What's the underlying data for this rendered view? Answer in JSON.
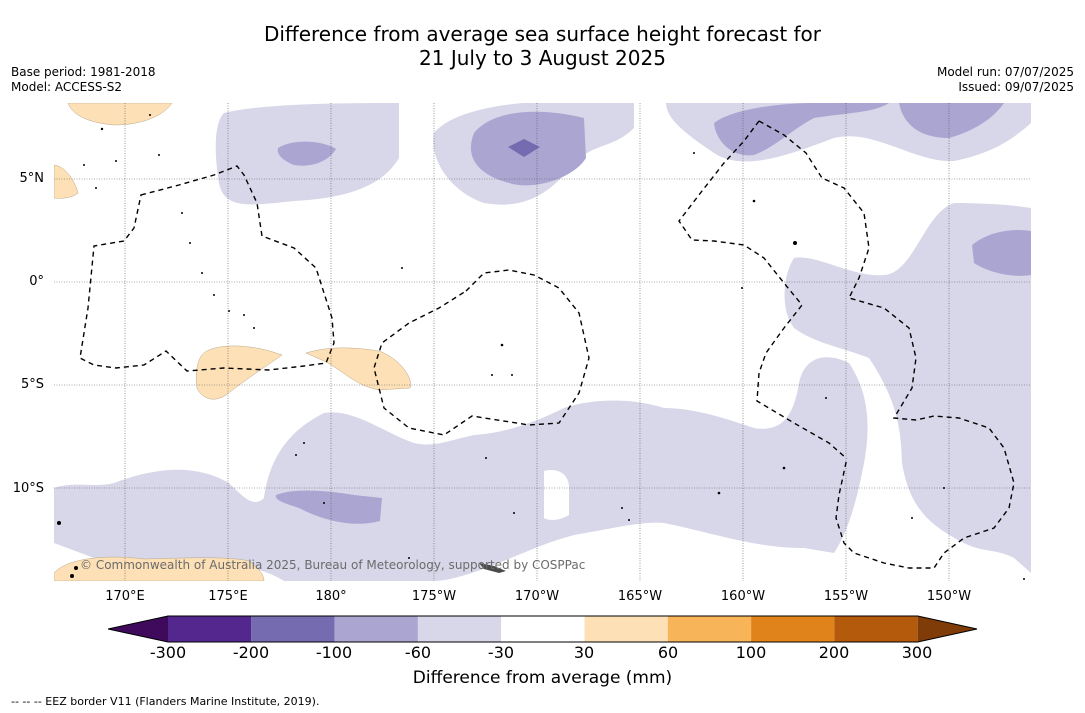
{
  "title_line1": "Difference from average sea surface height forecast for",
  "title_line2": "21 July to 3 August 2025",
  "base_period": "Base period: 1981-2018",
  "model": "Model: ACCESS-S2",
  "model_run": "Model run: 07/07/2025",
  "issued": "Issued: 09/07/2025",
  "lat_labels": [
    "5°N",
    "0°",
    "5°S",
    "10°S"
  ],
  "lon_labels": [
    "170°E",
    "175°E",
    "180°",
    "175°W",
    "170°W",
    "165°W",
    "160°W",
    "155°W",
    "150°W"
  ],
  "copyright": "© Commonwealth of Australia 2025, Bureau of Meteorology, supported by COSPPac",
  "colorbar": {
    "ticks": [
      "-300",
      "-200",
      "-100",
      "-60",
      "-30",
      "30",
      "60",
      "100",
      "200",
      "300"
    ],
    "colors": [
      "#3f0a5c",
      "#54278f",
      "#756bb1",
      "#aba5d1",
      "#d7d7e9",
      "#ffffff",
      "#fde0b6",
      "#f8b458",
      "#e0831a",
      "#b45a0c",
      "#7f3b08"
    ],
    "label": "Difference from average (mm)"
  },
  "footnote": "--  --  -- EEZ border V11 (Flanders Marine Institute, 2019)."
}
